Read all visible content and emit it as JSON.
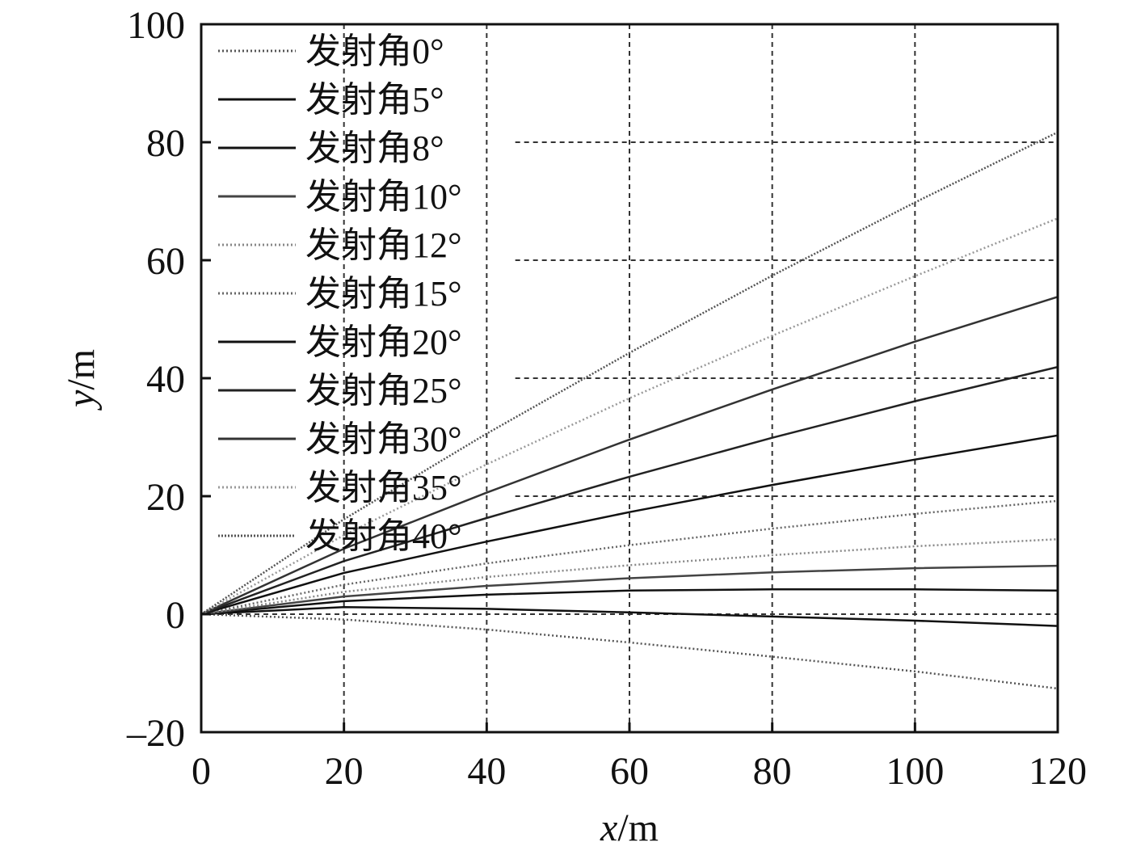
{
  "chart_data": {
    "type": "line",
    "xlabel": "x/m",
    "xlabel_var": "x",
    "xlabel_unit": "/m",
    "ylabel": "y/m",
    "ylabel_var": "y",
    "ylabel_unit": "/m",
    "xlim": [
      0,
      120
    ],
    "ylim": [
      -20,
      100
    ],
    "xticks": [
      0,
      20,
      40,
      60,
      80,
      100,
      120
    ],
    "yticks": [
      -20,
      0,
      20,
      40,
      60,
      80,
      100
    ],
    "xtick_labels": [
      "0",
      "20",
      "40",
      "60",
      "80",
      "100",
      "120"
    ],
    "ytick_labels": [
      "–20",
      "0",
      "20",
      "40",
      "60",
      "80",
      "100"
    ],
    "grid": true,
    "legend_position": "top-left",
    "series": [
      {
        "name": "发射角0°",
        "color": "#555555",
        "dash": "2,3",
        "x": [
          0,
          20,
          40,
          60,
          80,
          100,
          120
        ],
        "y": [
          0,
          -0.9,
          -2.6,
          -4.8,
          -7.2,
          -9.7,
          -12.6
        ]
      },
      {
        "name": "发射角5°",
        "color": "#111111",
        "dash": "",
        "x": [
          0,
          20,
          40,
          60,
          80,
          100,
          120
        ],
        "y": [
          0,
          1.2,
          0.9,
          0.3,
          -0.4,
          -1.1,
          -2.0
        ]
      },
      {
        "name": "发射角8°",
        "color": "#111111",
        "dash": "",
        "x": [
          0,
          20,
          40,
          60,
          80,
          100,
          120
        ],
        "y": [
          0,
          2.2,
          3.3,
          4.0,
          4.2,
          4.2,
          4.0
        ]
      },
      {
        "name": "发射角10°",
        "color": "#444444",
        "dash": "",
        "x": [
          0,
          20,
          40,
          60,
          80,
          100,
          120
        ],
        "y": [
          0,
          3.0,
          4.8,
          6.1,
          7.1,
          7.8,
          8.2
        ]
      },
      {
        "name": "发射角12°",
        "color": "#888888",
        "dash": "2,3",
        "x": [
          0,
          20,
          40,
          60,
          80,
          100,
          120
        ],
        "y": [
          0,
          3.8,
          6.3,
          8.3,
          10.0,
          11.5,
          12.7
        ]
      },
      {
        "name": "发射角15°",
        "color": "#666666",
        "dash": "2,3",
        "x": [
          0,
          20,
          40,
          60,
          80,
          100,
          120
        ],
        "y": [
          0,
          5.0,
          8.6,
          11.7,
          14.5,
          17.0,
          19.2
        ]
      },
      {
        "name": "发射角20°",
        "color": "#111111",
        "dash": "",
        "x": [
          0,
          20,
          40,
          60,
          80,
          100,
          120
        ],
        "y": [
          0,
          7.0,
          12.3,
          17.3,
          21.9,
          26.2,
          30.3
        ]
      },
      {
        "name": "发射角25°",
        "color": "#222222",
        "dash": "",
        "x": [
          0,
          20,
          40,
          60,
          80,
          100,
          120
        ],
        "y": [
          0,
          9.0,
          16.3,
          23.3,
          29.9,
          36.1,
          41.9
        ]
      },
      {
        "name": "发射角30°",
        "color": "#333333",
        "dash": "",
        "x": [
          0,
          20,
          40,
          60,
          80,
          100,
          120
        ],
        "y": [
          0,
          11.1,
          20.6,
          29.6,
          38.1,
          46.2,
          53.8
        ]
      },
      {
        "name": "发射角35°",
        "color": "#999999",
        "dash": "2,3",
        "x": [
          0,
          20,
          40,
          60,
          80,
          100,
          120
        ],
        "y": [
          0,
          13.4,
          25.4,
          36.6,
          47.2,
          57.3,
          67.1
        ]
      },
      {
        "name": "发射角40°",
        "color": "#555555",
        "dash": "2,2",
        "x": [
          0,
          20,
          40,
          60,
          80,
          100,
          120
        ],
        "y": [
          0,
          16.1,
          30.6,
          44.3,
          57.4,
          69.8,
          81.7
        ]
      }
    ]
  }
}
